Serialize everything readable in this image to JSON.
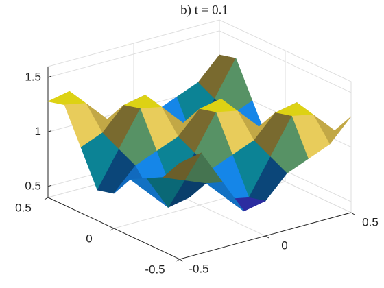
{
  "chart_data": {
    "type": "surface",
    "title": "b) t = 0.1",
    "x": [
      -0.5,
      -0.375,
      -0.25,
      -0.125,
      0,
      0.125,
      0.25,
      0.375,
      0.5
    ],
    "y": [
      -0.5,
      -0.375,
      -0.25,
      -0.125,
      0,
      0.125,
      0.25,
      0.375,
      0.5
    ],
    "z": [
      [
        1.28,
        1.32,
        1,
        0.68,
        0.72,
        0.92,
        1,
        1.08,
        1.28
      ],
      [
        1.08,
        1,
        0.92,
        0.72,
        0.68,
        1,
        1.32,
        1.28,
        1.08
      ],
      [
        1,
        0.68,
        0.72,
        0.92,
        1,
        1.08,
        1.28,
        1.32,
        1
      ],
      [
        0.92,
        0.72,
        0.68,
        1,
        1.32,
        1.28,
        1.08,
        1,
        0.92
      ],
      [
        0.72,
        0.92,
        1,
        1.08,
        1.28,
        1.32,
        1,
        0.68,
        0.72
      ],
      [
        0.68,
        1,
        1.32,
        1.28,
        1.08,
        1,
        0.92,
        0.72,
        0.68
      ],
      [
        1,
        1.08,
        1.28,
        1.32,
        1,
        0.68,
        0.72,
        0.92,
        1
      ],
      [
        1.32,
        1.28,
        1.08,
        1,
        0.92,
        0.72,
        0.68,
        1,
        1.32
      ],
      [
        1.28,
        1.32,
        1,
        0.68,
        0.72,
        0.92,
        1,
        1.08,
        1.28
      ]
    ],
    "xlim": [
      -0.5,
      0.5
    ],
    "ylim": [
      -0.5,
      0.5
    ],
    "zlim": [
      0.4,
      1.6
    ],
    "xticks": [
      -0.5,
      0,
      0.5
    ],
    "yticks": [
      -0.5,
      0,
      0.5
    ],
    "zticks": [
      0.5,
      1,
      1.5
    ],
    "colormap": [
      "#3e26a8",
      "#0f5cdd",
      "#1481d6",
      "#06a4ca",
      "#2eb7a4",
      "#87bf77",
      "#d1bb59",
      "#fec832",
      "#f9fb0e"
    ],
    "grid": true
  }
}
